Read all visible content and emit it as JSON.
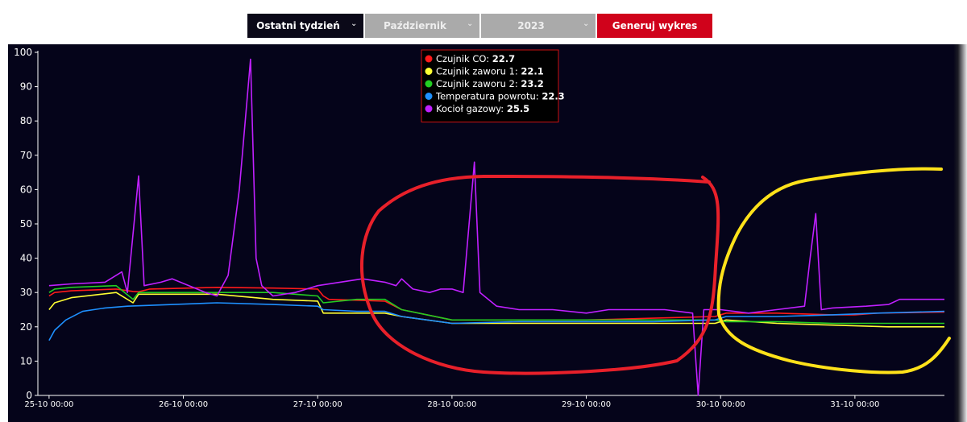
{
  "toolbar": {
    "range_label": "Ostatni tydzień",
    "month_label": "Październik",
    "year_label": "2023",
    "generate_label": "Generuj wykres",
    "chevron_icon": "chevron-down-icon"
  },
  "colors": {
    "background": "#05041a",
    "generate_button": "#d0021b",
    "annotation_red": "#e8202a",
    "annotation_yellow": "#ffe21a"
  },
  "chart_data": {
    "type": "line",
    "title": "",
    "xlabel": "",
    "ylabel": "",
    "ylim": [
      0,
      100
    ],
    "yticks": [
      0,
      10,
      20,
      30,
      40,
      50,
      60,
      70,
      80,
      90,
      100
    ],
    "xlim": [
      "25-10 00:00",
      "31-10 10:00"
    ],
    "xticks": [
      {
        "label": "25-10 00:00",
        "hours": 0
      },
      {
        "label": "26-10 00:00",
        "hours": 24
      },
      {
        "label": "27-10 00:00",
        "hours": 48
      },
      {
        "label": "28-10 00:00",
        "hours": 72
      },
      {
        "label": "29-10 00:00",
        "hours": 96
      },
      {
        "label": "30-10 00:00",
        "hours": 120
      },
      {
        "label": "31-10 00:00",
        "hours": 144
      }
    ],
    "grid": false,
    "legend_position": "top-center",
    "legend": [
      {
        "label": "Czujnik CO:",
        "value": "22.7",
        "color": "#ff1a1a"
      },
      {
        "label": "Czujnik zaworu 1:",
        "value": "22.1",
        "color": "#ffff33"
      },
      {
        "label": "Czujnik zaworu 2:",
        "value": "23.2",
        "color": "#22cc22"
      },
      {
        "label": "Temperatura powrotu:",
        "value": "22.3",
        "color": "#1e90ff"
      },
      {
        "label": "Kocioł gazowy:",
        "value": "25.5",
        "color": "#c020ff"
      }
    ],
    "series": [
      {
        "name": "Czujnik CO",
        "color": "#ff1a1a",
        "points": [
          [
            0,
            29
          ],
          [
            1,
            30
          ],
          [
            4,
            30.5
          ],
          [
            12,
            31
          ],
          [
            15,
            30.3
          ],
          [
            16,
            30.2
          ],
          [
            18,
            31
          ],
          [
            30,
            31.5
          ],
          [
            40,
            31.3
          ],
          [
            48,
            31
          ],
          [
            49,
            29
          ],
          [
            50,
            28
          ],
          [
            60,
            27.5
          ],
          [
            63,
            25
          ],
          [
            72,
            22
          ],
          [
            84,
            22
          ],
          [
            96,
            22
          ],
          [
            108,
            22.5
          ],
          [
            119,
            23
          ],
          [
            121,
            24
          ],
          [
            130,
            24
          ],
          [
            140,
            23.5
          ],
          [
            144,
            23.5
          ],
          [
            148,
            24
          ],
          [
            160,
            24.3
          ]
        ]
      },
      {
        "name": "Czujnik zaworu 1",
        "color": "#ffff33",
        "points": [
          [
            0,
            25
          ],
          [
            1,
            27
          ],
          [
            4,
            28.5
          ],
          [
            12,
            30
          ],
          [
            15,
            27
          ],
          [
            16,
            29.5
          ],
          [
            30,
            29.5
          ],
          [
            40,
            28
          ],
          [
            48,
            27.5
          ],
          [
            49,
            24
          ],
          [
            55,
            24
          ],
          [
            60,
            24
          ],
          [
            63,
            23
          ],
          [
            72,
            21
          ],
          [
            84,
            21
          ],
          [
            96,
            21
          ],
          [
            108,
            21
          ],
          [
            119,
            21
          ],
          [
            121,
            22
          ],
          [
            130,
            21
          ],
          [
            140,
            20.5
          ],
          [
            150,
            20
          ],
          [
            160,
            20
          ]
        ]
      },
      {
        "name": "Czujnik zaworu 2",
        "color": "#22cc22",
        "points": [
          [
            0,
            30
          ],
          [
            1,
            31
          ],
          [
            4,
            31.5
          ],
          [
            12,
            32
          ],
          [
            15,
            28
          ],
          [
            16,
            30
          ],
          [
            30,
            30
          ],
          [
            40,
            30
          ],
          [
            48,
            29
          ],
          [
            49,
            27
          ],
          [
            55,
            28
          ],
          [
            60,
            28
          ],
          [
            63,
            25
          ],
          [
            72,
            22
          ],
          [
            84,
            22
          ],
          [
            96,
            22
          ],
          [
            108,
            22
          ],
          [
            119,
            22
          ],
          [
            121,
            21.5
          ],
          [
            130,
            21.5
          ],
          [
            140,
            21
          ],
          [
            160,
            21
          ]
        ]
      },
      {
        "name": "Temperatura powrotu",
        "color": "#1e90ff",
        "points": [
          [
            0,
            16
          ],
          [
            1,
            19
          ],
          [
            3,
            22
          ],
          [
            6,
            24.5
          ],
          [
            10,
            25.5
          ],
          [
            14,
            26
          ],
          [
            30,
            27
          ],
          [
            40,
            26.5
          ],
          [
            48,
            26
          ],
          [
            49,
            25
          ],
          [
            55,
            24.5
          ],
          [
            60,
            24.5
          ],
          [
            63,
            23
          ],
          [
            72,
            21
          ],
          [
            84,
            21.5
          ],
          [
            96,
            21.5
          ],
          [
            108,
            21.5
          ],
          [
            119,
            22
          ],
          [
            121,
            23
          ],
          [
            130,
            23
          ],
          [
            140,
            23.5
          ],
          [
            148,
            24
          ],
          [
            160,
            24.5
          ]
        ]
      },
      {
        "name": "Kocioł gazowy",
        "color": "#c020ff",
        "points": [
          [
            0,
            32
          ],
          [
            4,
            32.5
          ],
          [
            10,
            33
          ],
          [
            13,
            36
          ],
          [
            14,
            30
          ],
          [
            16,
            64
          ],
          [
            17,
            32
          ],
          [
            20,
            33
          ],
          [
            22,
            34
          ],
          [
            25,
            32
          ],
          [
            28,
            30
          ],
          [
            30,
            29
          ],
          [
            32,
            35
          ],
          [
            34,
            60
          ],
          [
            36,
            98
          ],
          [
            37,
            40
          ],
          [
            38,
            32
          ],
          [
            40,
            29
          ],
          [
            44,
            30
          ],
          [
            48,
            32
          ],
          [
            52,
            33
          ],
          [
            56,
            34
          ],
          [
            60,
            33
          ],
          [
            62,
            32
          ],
          [
            63,
            34
          ],
          [
            65,
            31
          ],
          [
            68,
            30
          ],
          [
            70,
            31
          ],
          [
            72,
            31
          ],
          [
            74,
            30
          ],
          [
            76,
            68
          ],
          [
            77,
            30
          ],
          [
            80,
            26
          ],
          [
            84,
            25
          ],
          [
            90,
            25
          ],
          [
            96,
            24
          ],
          [
            100,
            25
          ],
          [
            105,
            25
          ],
          [
            110,
            25
          ],
          [
            115,
            24
          ],
          [
            116,
            0
          ],
          [
            117,
            25
          ],
          [
            120,
            25
          ],
          [
            125,
            24
          ],
          [
            130,
            25
          ],
          [
            135,
            26
          ],
          [
            136,
            40
          ],
          [
            137,
            53
          ],
          [
            138,
            25
          ],
          [
            140,
            25.5
          ],
          [
            146,
            26
          ],
          [
            150,
            26.5
          ],
          [
            152,
            28
          ],
          [
            160,
            28
          ]
        ]
      }
    ]
  },
  "annotations": [
    {
      "type": "freehand-loop",
      "color": "#e8202a"
    },
    {
      "type": "freehand-curve",
      "color": "#ffe21a"
    }
  ]
}
